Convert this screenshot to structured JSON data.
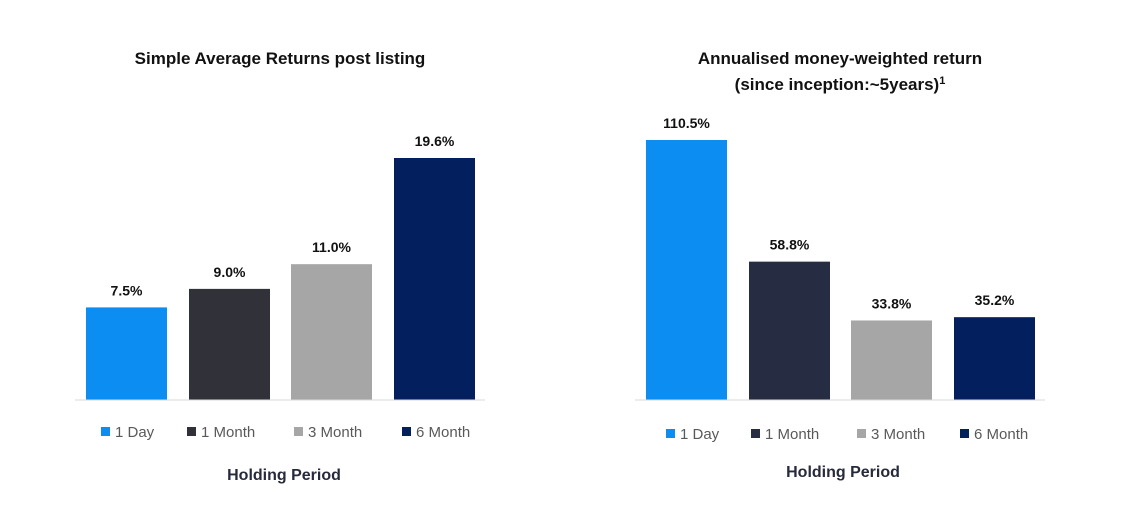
{
  "chart_data": [
    {
      "type": "bar",
      "title": "Simple Average Returns post listing",
      "xlabel": "Holding Period",
      "ylabel": "",
      "categories": [
        "1 Day",
        "1 Month",
        "3 Month",
        "6 Month"
      ],
      "values": [
        7.5,
        9.0,
        11.0,
        19.6
      ],
      "value_labels": [
        "7.5%",
        "9.0%",
        "11.0%",
        "19.6%"
      ],
      "colors": [
        "#0b8df2",
        "#31313a",
        "#a6a6a6",
        "#041f5e"
      ],
      "legend": {
        "position": "bottom",
        "entries": [
          "1 Day",
          "1 Month",
          "3 Month",
          "6 Month"
        ]
      },
      "ylim": [
        0,
        20
      ],
      "grid": false
    },
    {
      "type": "bar",
      "title": "Annualised money-weighted return",
      "subtitle": "(since inception:~5years)",
      "subtitle_superscript": "1",
      "xlabel": "Holding Period",
      "ylabel": "",
      "categories": [
        "1 Day",
        "1 Month",
        "3 Month",
        "6 Month"
      ],
      "values": [
        110.5,
        58.8,
        33.8,
        35.2
      ],
      "value_labels": [
        "110.5%",
        "58.8%",
        "33.8%",
        "35.2%"
      ],
      "colors": [
        "#0b8df2",
        "#262d42",
        "#a6a6a6",
        "#041f5e"
      ],
      "legend": {
        "position": "bottom",
        "entries": [
          "1 Day",
          "1 Month",
          "3 Month",
          "6 Month"
        ]
      },
      "ylim": [
        0,
        112
      ],
      "grid": false
    }
  ]
}
